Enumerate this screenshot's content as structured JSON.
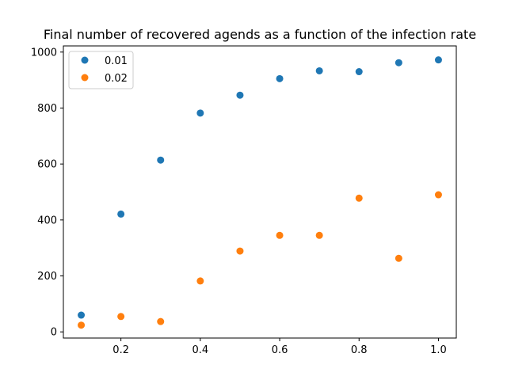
{
  "chart_data": {
    "type": "scatter",
    "title": "Final number of recovered agends as a function of the infection rate",
    "xlabel": "",
    "ylabel": "",
    "xlim": [
      0.055,
      1.045
    ],
    "ylim": [
      -22,
      1022
    ],
    "x_ticks": [
      0.2,
      0.4,
      0.6,
      0.8,
      1.0
    ],
    "x_tick_labels": [
      "0.2",
      "0.4",
      "0.6",
      "0.8",
      "1.0"
    ],
    "y_ticks": [
      0,
      200,
      400,
      600,
      800,
      1000
    ],
    "y_tick_labels": [
      "0",
      "200",
      "400",
      "600",
      "800",
      "1000"
    ],
    "grid": false,
    "legend_position": "top-left",
    "series": [
      {
        "name": "0.01",
        "color": "#1f77b4",
        "x": [
          0.1,
          0.2,
          0.3,
          0.4,
          0.5,
          0.6,
          0.7,
          0.8,
          0.9,
          1.0
        ],
        "y": [
          60,
          421,
          614,
          782,
          846,
          905,
          933,
          930,
          962,
          972
        ]
      },
      {
        "name": "0.02",
        "color": "#ff7f0e",
        "x": [
          0.1,
          0.2,
          0.3,
          0.4,
          0.5,
          0.6,
          0.7,
          0.8,
          0.9,
          1.0
        ],
        "y": [
          24,
          55,
          37,
          182,
          289,
          345,
          345,
          478,
          263,
          490
        ]
      }
    ]
  }
}
